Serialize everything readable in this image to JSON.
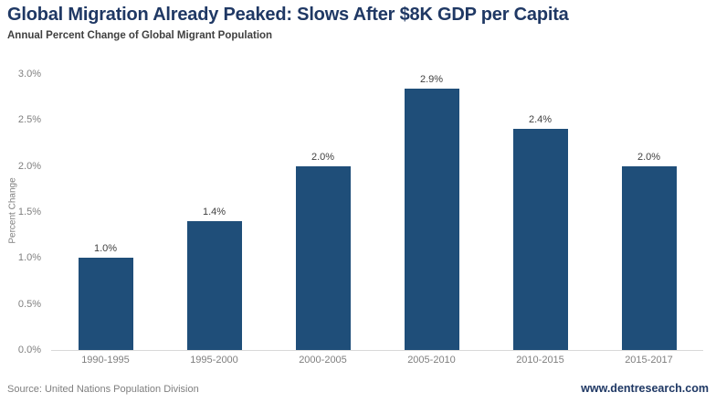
{
  "header": {
    "title": "Global Migration Already Peaked: Slows After $8K GDP per Capita",
    "subtitle": "Annual Percent Change of Global Migrant Population"
  },
  "footer": {
    "source": "Source: United Nations Population Division",
    "website": "www.dentresearch.com"
  },
  "colors": {
    "bar": "#1F4E79",
    "title_text": "#1F3864",
    "subtitle_text": "#404040",
    "tick_text": "#7F7F7F",
    "value_label_text": "#404040",
    "baseline": "#D9D9D9"
  },
  "chart_data": {
    "type": "bar",
    "title": "Global Migration Already Peaked: Slows After $8K GDP per Capita",
    "subtitle": "Annual Percent Change of Global Migrant Population",
    "categories": [
      "1990-1995",
      "1995-2000",
      "2000-2005",
      "2005-2010",
      "2010-2015",
      "2015-2017"
    ],
    "values": [
      1.0,
      1.4,
      2.0,
      2.9,
      2.4,
      2.0
    ],
    "value_labels": [
      "1.0%",
      "1.4%",
      "2.0%",
      "2.9%",
      "2.4%",
      "2.0%"
    ],
    "xlabel": "",
    "ylabel": "Percent Change",
    "ylim": [
      0,
      3.0
    ],
    "yticks": [
      0.0,
      0.5,
      1.0,
      1.5,
      2.0,
      2.5,
      3.0
    ],
    "ytick_labels": [
      "0.0%",
      "0.5%",
      "1.0%",
      "1.5%",
      "2.0%",
      "2.5%",
      "3.0%"
    ],
    "grid": false,
    "legend": "none",
    "bar_color": "#1F4E79"
  }
}
